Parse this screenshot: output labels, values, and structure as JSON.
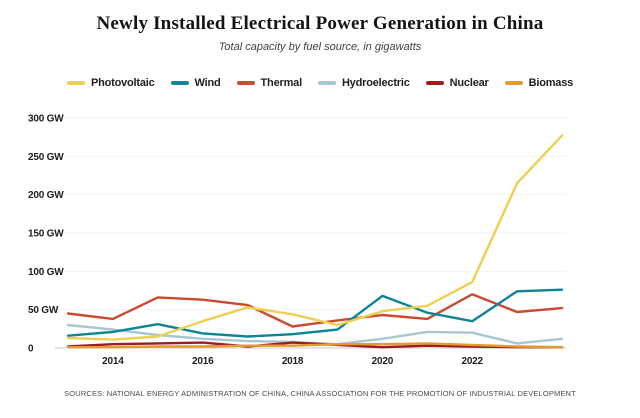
{
  "title": "Newly Installed Electrical Power Generation in China",
  "subtitle": "Total capacity by fuel source, in gigawatts",
  "source_note": "SOURCES: NATIONAL ENERGY ADMINISTRATION OF CHINA, CHINA ASSOCIATION FOR THE PROMOTION OF INDUSTRIAL DEVELOPMENT",
  "chart_data": {
    "type": "line",
    "title": "Newly Installed Electrical Power Generation in China",
    "subtitle": "Total capacity by fuel source, in gigawatts",
    "unit": "GW",
    "x": [
      2013,
      2014,
      2015,
      2016,
      2017,
      2018,
      2019,
      2020,
      2021,
      2022,
      2023,
      2024
    ],
    "series": [
      {
        "name": "Photovoltaic",
        "color": "#ecd052",
        "values": [
          13,
          11,
          15,
          35,
          53,
          44,
          30,
          48,
          55,
          86,
          215,
          277
        ]
      },
      {
        "name": "Wind",
        "color": "#0e8597",
        "values": [
          16,
          21,
          31,
          19,
          15,
          18,
          24,
          68,
          46,
          35,
          74,
          76
        ]
      },
      {
        "name": "Thermal",
        "color": "#cb4b2e",
        "values": [
          45,
          38,
          66,
          63,
          56,
          28,
          36,
          43,
          38,
          70,
          47,
          52
        ]
      },
      {
        "name": "Hydroelectric",
        "color": "#a9c6d3",
        "values": [
          30,
          24,
          17,
          12,
          9,
          8,
          5,
          12,
          21,
          20,
          6,
          12
        ]
      },
      {
        "name": "Nuclear",
        "color": "#9f1b20",
        "values": [
          2,
          5,
          6,
          7,
          2,
          7,
          4,
          1,
          3,
          2,
          1,
          1
        ]
      },
      {
        "name": "Biomass",
        "color": "#e39a31",
        "values": [
          1,
          1,
          2,
          2,
          3,
          3,
          5,
          5,
          6,
          4,
          2,
          1
        ]
      }
    ],
    "ylim": [
      0,
      300
    ],
    "yticks": [
      0,
      50,
      100,
      150,
      200,
      250,
      300
    ],
    "ytick_labels": [
      "0",
      "50 GW",
      "100 GW",
      "150 GW",
      "200 GW",
      "250 GW",
      "300 GW"
    ],
    "xticks": [
      2014,
      2016,
      2018,
      2020,
      2022
    ],
    "xtick_labels": [
      "2014",
      "2016",
      "2018",
      "2020",
      "2022"
    ],
    "grid": "horizontal",
    "legend_position": "top"
  }
}
